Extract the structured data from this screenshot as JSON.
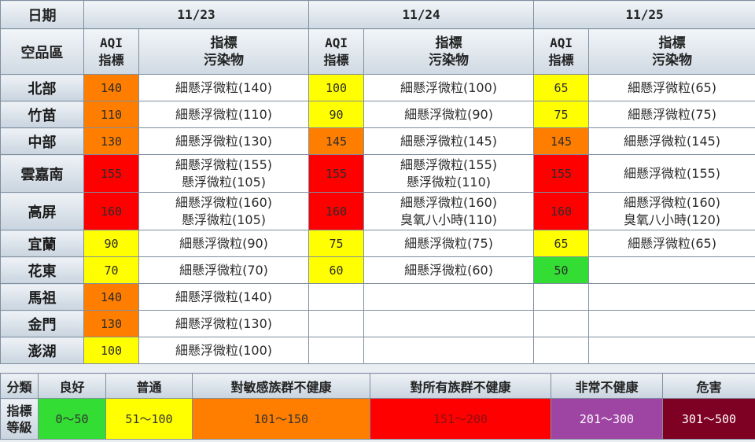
{
  "header": {
    "date_label": "日期",
    "region_label": "空品區",
    "dates": [
      "11/23",
      "11/24",
      "11/25"
    ],
    "aqi_label": [
      "AQI",
      "指標"
    ],
    "pollutant_label": [
      "指標",
      "污染物"
    ]
  },
  "colors": {
    "good": "#33dd33",
    "moderate": "#ffff00",
    "usg": "#ff7e00",
    "unhealthy": "#ff0000",
    "very_unhealthy": "#9e45a4",
    "hazardous": "#7e0023"
  },
  "rows": [
    {
      "region": "北部",
      "days": [
        {
          "aqi": "140",
          "level": "usg",
          "pollutants": [
            "細懸浮微粒(140)"
          ]
        },
        {
          "aqi": "100",
          "level": "moderate",
          "pollutants": [
            "細懸浮微粒(100)"
          ]
        },
        {
          "aqi": "65",
          "level": "moderate",
          "pollutants": [
            "細懸浮微粒(65)"
          ]
        }
      ]
    },
    {
      "region": "竹苗",
      "days": [
        {
          "aqi": "110",
          "level": "usg",
          "pollutants": [
            "細懸浮微粒(110)"
          ]
        },
        {
          "aqi": "90",
          "level": "moderate",
          "pollutants": [
            "細懸浮微粒(90)"
          ]
        },
        {
          "aqi": "75",
          "level": "moderate",
          "pollutants": [
            "細懸浮微粒(75)"
          ]
        }
      ]
    },
    {
      "region": "中部",
      "days": [
        {
          "aqi": "130",
          "level": "usg",
          "pollutants": [
            "細懸浮微粒(130)"
          ]
        },
        {
          "aqi": "145",
          "level": "usg",
          "pollutants": [
            "細懸浮微粒(145)"
          ]
        },
        {
          "aqi": "145",
          "level": "usg",
          "pollutants": [
            "細懸浮微粒(145)"
          ]
        }
      ]
    },
    {
      "region": "雲嘉南",
      "days": [
        {
          "aqi": "155",
          "level": "unhealthy",
          "pollutants": [
            "細懸浮微粒(155)",
            "懸浮微粒(105)"
          ]
        },
        {
          "aqi": "155",
          "level": "unhealthy",
          "pollutants": [
            "細懸浮微粒(155)",
            "懸浮微粒(110)"
          ]
        },
        {
          "aqi": "155",
          "level": "unhealthy",
          "pollutants": [
            "細懸浮微粒(155)"
          ]
        }
      ]
    },
    {
      "region": "高屏",
      "days": [
        {
          "aqi": "160",
          "level": "unhealthy",
          "pollutants": [
            "細懸浮微粒(160)",
            "懸浮微粒(105)"
          ]
        },
        {
          "aqi": "160",
          "level": "unhealthy",
          "pollutants": [
            "細懸浮微粒(160)",
            "臭氧八小時(110)"
          ]
        },
        {
          "aqi": "160",
          "level": "unhealthy",
          "pollutants": [
            "細懸浮微粒(160)",
            "臭氧八小時(120)"
          ]
        }
      ]
    },
    {
      "region": "宜蘭",
      "days": [
        {
          "aqi": "90",
          "level": "moderate",
          "pollutants": [
            "細懸浮微粒(90)"
          ]
        },
        {
          "aqi": "75",
          "level": "moderate",
          "pollutants": [
            "細懸浮微粒(75)"
          ]
        },
        {
          "aqi": "65",
          "level": "moderate",
          "pollutants": [
            "細懸浮微粒(65)"
          ]
        }
      ]
    },
    {
      "region": "花東",
      "days": [
        {
          "aqi": "70",
          "level": "moderate",
          "pollutants": [
            "細懸浮微粒(70)"
          ]
        },
        {
          "aqi": "60",
          "level": "moderate",
          "pollutants": [
            "細懸浮微粒(60)"
          ]
        },
        {
          "aqi": "50",
          "level": "good",
          "pollutants": []
        }
      ]
    },
    {
      "region": "馬祖",
      "days": [
        {
          "aqi": "140",
          "level": "usg",
          "pollutants": [
            "細懸浮微粒(140)"
          ]
        },
        null,
        null
      ]
    },
    {
      "region": "金門",
      "days": [
        {
          "aqi": "130",
          "level": "usg",
          "pollutants": [
            "細懸浮微粒(130)"
          ]
        },
        null,
        null
      ]
    },
    {
      "region": "澎湖",
      "days": [
        {
          "aqi": "100",
          "level": "moderate",
          "pollutants": [
            "細懸浮微粒(100)"
          ]
        },
        null,
        null
      ]
    }
  ],
  "legend": {
    "category_label": "分類",
    "index_label": [
      "指標",
      "等級"
    ],
    "categories": [
      {
        "name": "良好",
        "range": "0〜50",
        "color": "#33dd33",
        "text_color": "#333333"
      },
      {
        "name": "普通",
        "range": "51〜100",
        "color": "#ffff00",
        "text_color": "#333333"
      },
      {
        "name": "對敏感族群不健康",
        "range": "101〜150",
        "color": "#ff7e00",
        "text_color": "#333333"
      },
      {
        "name": "對所有族群不健康",
        "range": "151〜200",
        "color": "#ff0000",
        "text_color": "#8a1010"
      },
      {
        "name": "非常不健康",
        "range": "201〜300",
        "color": "#9e45a4",
        "text_color": "#ffffff"
      },
      {
        "name": "危害",
        "range": "301〜500",
        "color": "#7e0023",
        "text_color": "#ffffff"
      }
    ]
  }
}
